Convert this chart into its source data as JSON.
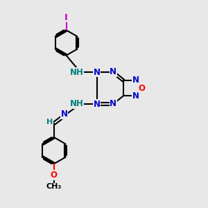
{
  "bg_color": "#e8e8e8",
  "bond_color": "#000000",
  "N_color": "#0000cc",
  "O_color": "#ff0000",
  "I_color": "#cc00cc",
  "NH_color": "#008080",
  "line_width": 1.5,
  "font_size": 8.5,
  "fig_size": [
    3.0,
    3.0
  ],
  "dpi": 100,
  "xlim": [
    0,
    10
  ],
  "ylim": [
    0,
    10
  ]
}
